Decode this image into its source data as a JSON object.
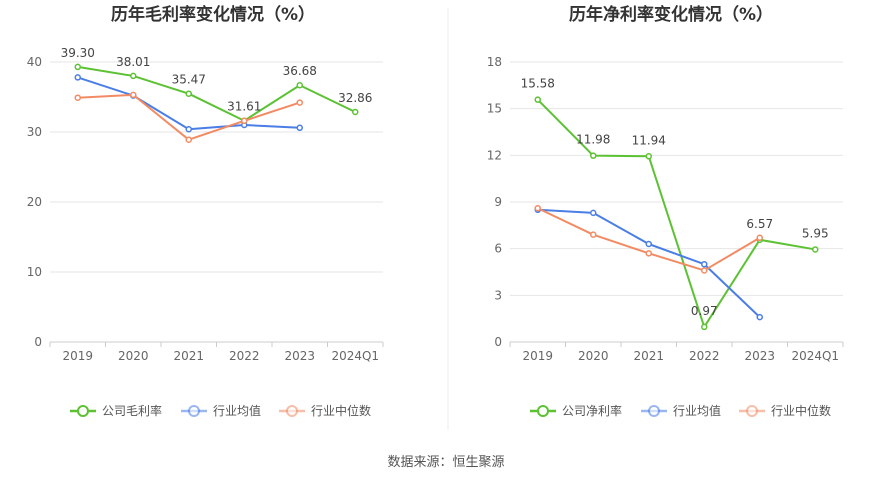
{
  "chart_data": [
    {
      "type": "line",
      "title": "历年毛利率变化情况（%）",
      "categories": [
        "2019",
        "2020",
        "2021",
        "2022",
        "2023",
        "2024Q1"
      ],
      "ylim": [
        0,
        40
      ],
      "yticks": [
        0,
        10,
        20,
        30,
        40
      ],
      "grid": true,
      "legend_position": "bottom",
      "series": [
        {
          "name": "公司毛利率",
          "color": "#5cc233",
          "values": [
            39.3,
            38.01,
            35.47,
            31.61,
            36.68,
            32.86
          ],
          "labeled": true,
          "labels": [
            "39.30",
            "38.01",
            "35.47",
            "31.61",
            "36.68",
            "32.86"
          ]
        },
        {
          "name": "行业均值",
          "color": "#4a7ee6",
          "values": [
            37.8,
            35.2,
            30.4,
            31.0,
            30.6,
            null
          ],
          "labeled": false
        },
        {
          "name": "行业中位数",
          "color": "#f28b63",
          "values": [
            34.9,
            35.3,
            28.9,
            31.6,
            34.2,
            null
          ],
          "labeled": false
        }
      ]
    },
    {
      "type": "line",
      "title": "历年净利率变化情况（%）",
      "categories": [
        "2019",
        "2020",
        "2021",
        "2022",
        "2023",
        "2024Q1"
      ],
      "ylim": [
        0,
        18
      ],
      "yticks": [
        0,
        3,
        6,
        9,
        12,
        15,
        18
      ],
      "grid": true,
      "legend_position": "bottom",
      "series": [
        {
          "name": "公司净利率",
          "color": "#5cc233",
          "values": [
            15.58,
            11.98,
            11.94,
            0.97,
            6.57,
            5.95
          ],
          "labeled": true,
          "labels": [
            "15.58",
            "11.98",
            "11.94",
            "0.97",
            "6.57",
            "5.95"
          ]
        },
        {
          "name": "行业均值",
          "color": "#4a7ee6",
          "values": [
            8.5,
            8.3,
            6.3,
            5.0,
            1.6,
            null
          ],
          "labeled": false
        },
        {
          "name": "行业中位数",
          "color": "#f28b63",
          "values": [
            8.6,
            6.9,
            5.7,
            4.6,
            6.7,
            null
          ],
          "labeled": false
        }
      ]
    }
  ],
  "footer": {
    "source": "数据来源：恒生聚源"
  }
}
